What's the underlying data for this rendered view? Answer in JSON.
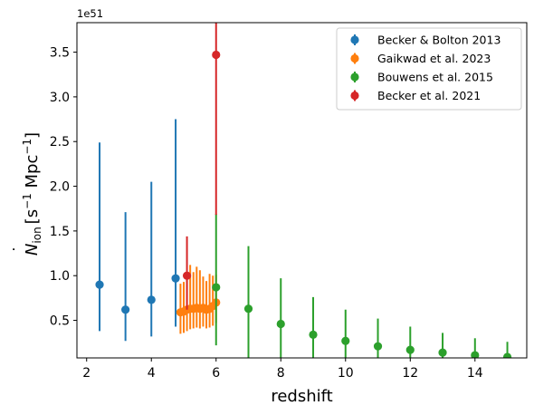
{
  "chart_data": {
    "type": "scatter",
    "xlabel": "redshift",
    "ylabel_main": "N",
    "ylabel_sub": "ion",
    "ylabel_unit_open": "[s",
    "ylabel_exp1": "−1",
    "ylabel_unit_mid": " Mpc",
    "ylabel_exp2": "−1",
    "ylabel_unit_close": "]",
    "y_offset_text": "1e51",
    "xlim": [
      1.7,
      15.6
    ],
    "ylim": [
      0.08,
      3.83
    ],
    "x_ticks": [
      2,
      4,
      6,
      8,
      10,
      12,
      14
    ],
    "x_tick_labels": [
      "2",
      "4",
      "6",
      "8",
      "10",
      "12",
      "14"
    ],
    "y_ticks": [
      0.5,
      1.0,
      1.5,
      2.0,
      2.5,
      3.0,
      3.5
    ],
    "y_tick_labels": [
      "0.5",
      "1.0",
      "1.5",
      "2.0",
      "2.5",
      "3.0",
      "3.5"
    ],
    "grid": false,
    "legend_position": "top-right",
    "series": [
      {
        "name": "Becker & Bolton 2013",
        "color": "#1f77b4",
        "points": [
          {
            "x": 2.4,
            "y": 0.9,
            "lo": 0.38,
            "hi": 2.49
          },
          {
            "x": 3.2,
            "y": 0.62,
            "lo": 0.27,
            "hi": 1.71
          },
          {
            "x": 4.0,
            "y": 0.73,
            "lo": 0.32,
            "hi": 2.05
          },
          {
            "x": 4.75,
            "y": 0.97,
            "lo": 0.43,
            "hi": 2.75
          }
        ]
      },
      {
        "name": "Gaikwad et al. 2023",
        "color": "#ff7f0e",
        "points": [
          {
            "x": 4.9,
            "y": 0.59,
            "lo": 0.35,
            "hi": 0.91
          },
          {
            "x": 5.0,
            "y": 0.6,
            "lo": 0.36,
            "hi": 0.93
          },
          {
            "x": 5.1,
            "y": 0.62,
            "lo": 0.38,
            "hi": 0.98
          },
          {
            "x": 5.2,
            "y": 0.63,
            "lo": 0.4,
            "hi": 1.12
          },
          {
            "x": 5.3,
            "y": 0.63,
            "lo": 0.41,
            "hi": 1.04
          },
          {
            "x": 5.4,
            "y": 0.64,
            "lo": 0.42,
            "hi": 1.1
          },
          {
            "x": 5.5,
            "y": 0.63,
            "lo": 0.41,
            "hi": 1.06
          },
          {
            "x": 5.6,
            "y": 0.64,
            "lo": 0.43,
            "hi": 0.99
          },
          {
            "x": 5.7,
            "y": 0.62,
            "lo": 0.41,
            "hi": 0.94
          },
          {
            "x": 5.8,
            "y": 0.63,
            "lo": 0.42,
            "hi": 1.02
          },
          {
            "x": 5.9,
            "y": 0.66,
            "lo": 0.44,
            "hi": 1.0
          },
          {
            "x": 6.0,
            "y": 0.7,
            "lo": 0.47,
            "hi": 1.01
          }
        ]
      },
      {
        "name": "Bouwens et al. 2015",
        "color": "#2ca02c",
        "points": [
          {
            "x": 6,
            "y": 0.87,
            "lo": 0.22,
            "hi": 1.69
          },
          {
            "x": 7,
            "y": 0.63,
            "lo": 0.08,
            "hi": 1.33
          },
          {
            "x": 8,
            "y": 0.46,
            "lo": 0.08,
            "hi": 0.97
          },
          {
            "x": 9,
            "y": 0.34,
            "lo": 0.08,
            "hi": 0.76
          },
          {
            "x": 10,
            "y": 0.27,
            "lo": 0.08,
            "hi": 0.62
          },
          {
            "x": 11,
            "y": 0.21,
            "lo": 0.08,
            "hi": 0.52
          },
          {
            "x": 12,
            "y": 0.17,
            "lo": 0.08,
            "hi": 0.43
          },
          {
            "x": 13,
            "y": 0.14,
            "lo": 0.08,
            "hi": 0.36
          },
          {
            "x": 14,
            "y": 0.11,
            "lo": 0.08,
            "hi": 0.3
          },
          {
            "x": 15,
            "y": 0.09,
            "lo": 0.08,
            "hi": 0.26
          }
        ]
      },
      {
        "name": "Becker et al. 2021",
        "color": "#d62728",
        "points": [
          {
            "x": 5.1,
            "y": 1.0,
            "lo": 0.62,
            "hi": 1.44
          },
          {
            "x": 6.0,
            "y": 3.47,
            "lo": 1.68,
            "hi": 3.83
          }
        ]
      }
    ]
  }
}
